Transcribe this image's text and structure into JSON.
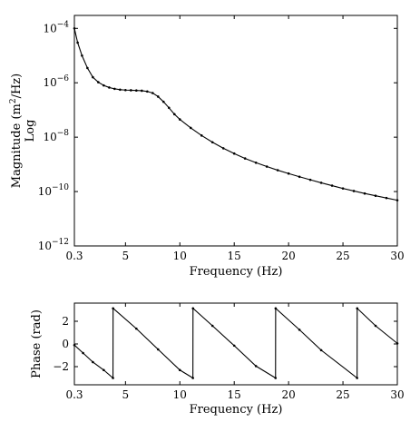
{
  "chart_data": [
    {
      "type": "line",
      "xlabel": "Frequency (Hz)",
      "ylabel_lines": [
        "Magnitude (m",
        "2",
        "/Hz)",
        "Log"
      ],
      "yscale": "log",
      "xlim": [
        0.3,
        30
      ],
      "ylim": [
        1e-12,
        0.0003
      ],
      "xticks": [
        0.3,
        5,
        10,
        15,
        20,
        25,
        30
      ],
      "xtick_labels": [
        "0.3",
        "5",
        "10",
        "15",
        "20",
        "25",
        "30"
      ],
      "yticks": [
        1e-12,
        1e-10,
        1e-08,
        1e-06,
        0.0001
      ],
      "ytick_labels": [
        {
          "base": "10",
          "exp": "−12"
        },
        {
          "base": "10",
          "exp": "−10"
        },
        {
          "base": "10",
          "exp": "−8"
        },
        {
          "base": "10",
          "exp": "−6"
        },
        {
          "base": "10",
          "exp": "−4"
        }
      ],
      "grid": false,
      "series": [
        {
          "marker": "dot",
          "x": [
            0.3,
            0.6,
            1,
            1.5,
            2,
            2.5,
            3,
            3.5,
            4,
            4.5,
            5,
            5.5,
            6,
            6.5,
            7,
            7.5,
            8,
            8.5,
            9,
            9.5,
            10,
            11,
            12,
            13,
            14,
            15,
            16,
            17,
            18,
            19,
            20,
            21,
            22,
            23,
            24,
            25,
            26,
            27,
            28,
            29,
            30
          ],
          "y": [
            0.0001,
            3e-05,
            1e-05,
            3.5e-06,
            1.6e-06,
            1.05e-06,
            8e-07,
            6.7e-07,
            6e-07,
            5.6e-07,
            5.4e-07,
            5.3e-07,
            5.2e-07,
            5.1e-07,
            4.8e-07,
            4.2e-07,
            3.1e-07,
            2e-07,
            1.2e-07,
            7e-08,
            4.5e-08,
            2.2e-08,
            1.15e-08,
            6.5e-09,
            3.9e-09,
            2.5e-09,
            1.65e-09,
            1.15e-09,
            8.3e-10,
            6.1e-10,
            4.6e-10,
            3.5e-10,
            2.7e-10,
            2.1e-10,
            1.65e-10,
            1.3e-10,
            1.05e-10,
            8.5e-11,
            7e-11,
            5.8e-11,
            4.8e-11
          ]
        }
      ]
    },
    {
      "type": "line",
      "xlabel": "Frequency (Hz)",
      "ylabel": "Phase (rad)",
      "xlim": [
        0.3,
        30
      ],
      "ylim": [
        -3.6,
        3.6
      ],
      "xticks": [
        0.3,
        5,
        10,
        15,
        20,
        25,
        30
      ],
      "xtick_labels": [
        "0.3",
        "5",
        "10",
        "15",
        "20",
        "25",
        "30"
      ],
      "yticks": [
        -2,
        0,
        2
      ],
      "ytick_labels": [
        "−2",
        "0",
        "2"
      ],
      "grid": false,
      "series": [
        {
          "marker": "dot",
          "x": [
            0.3,
            1.1,
            2,
            3,
            3.85,
            3.86,
            6,
            8,
            10,
            11.2,
            11.21,
            13,
            15,
            17,
            18.8,
            18.81,
            21,
            23,
            26.3,
            26.31,
            28,
            30
          ],
          "y": [
            -0.1,
            -0.8,
            -1.6,
            -2.3,
            -3.0,
            3.14,
            1.35,
            -0.48,
            -2.3,
            -3.0,
            3.14,
            1.6,
            -0.15,
            -1.95,
            -3.0,
            3.14,
            1.25,
            -0.55,
            -3.0,
            3.14,
            1.6,
            0.05
          ]
        }
      ]
    }
  ]
}
